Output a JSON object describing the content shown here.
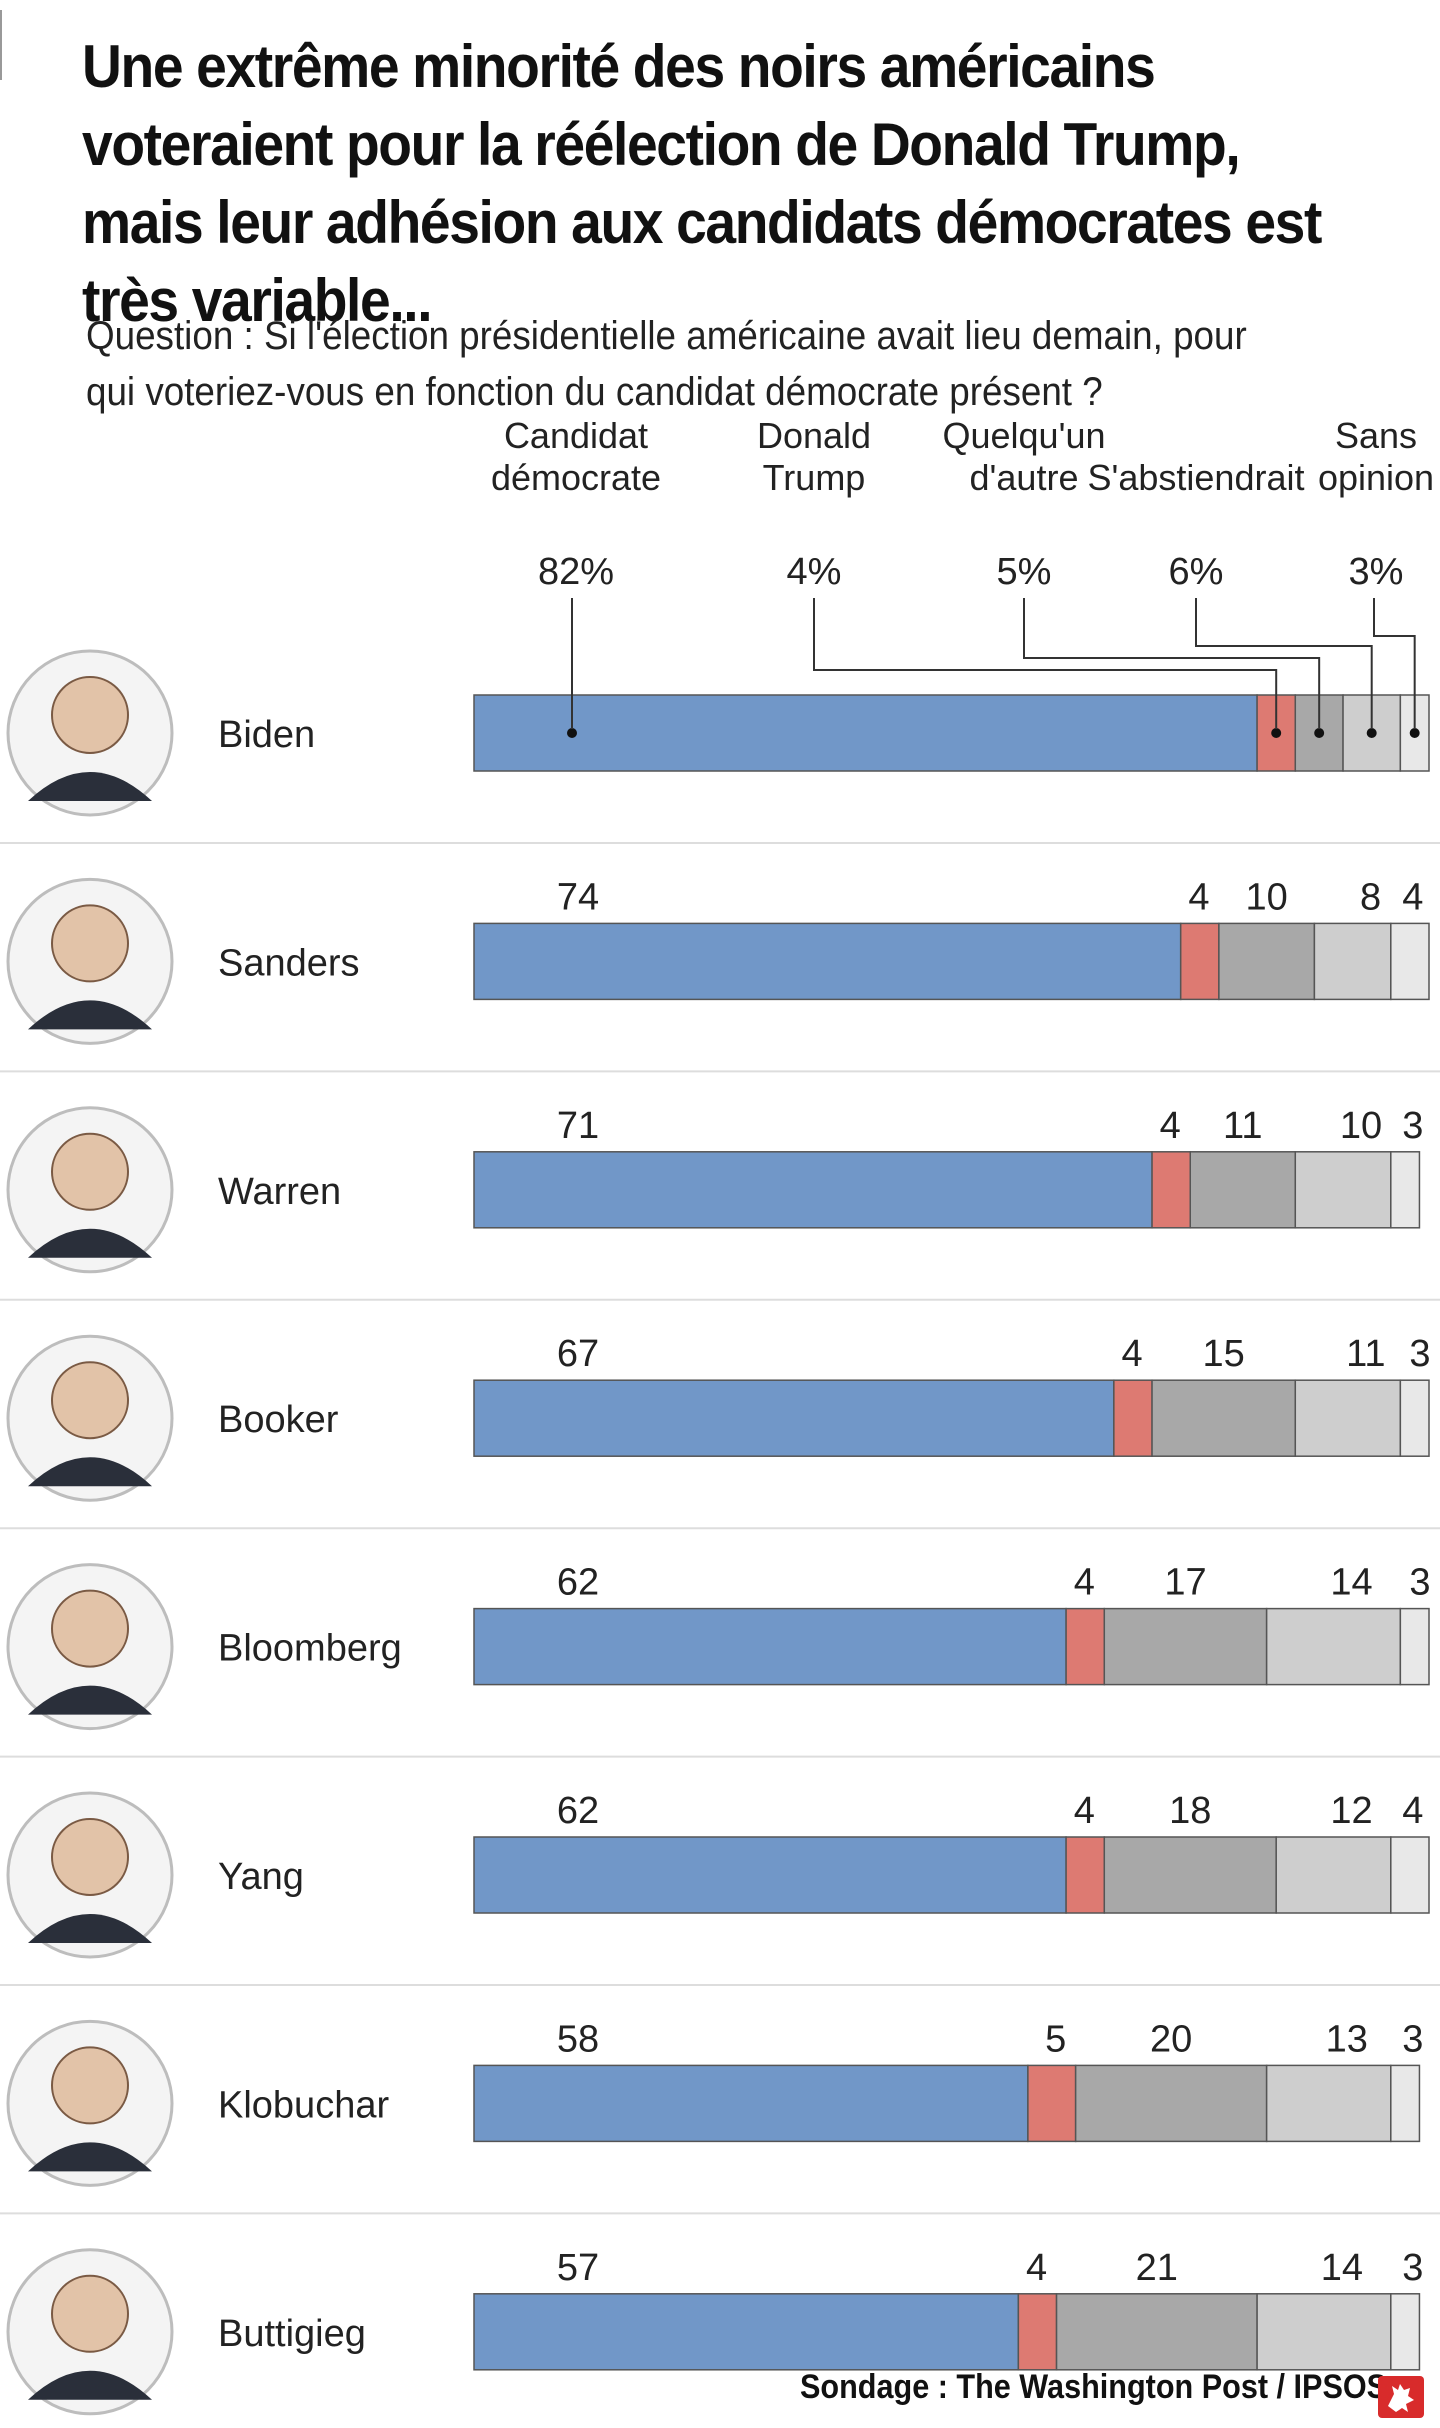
{
  "title": "Une extrême minorité des noirs américains voteraient pour la réélection de Donald Trump, mais leur adhésion aux candidats démocrates est très variable...",
  "subtitle": "Question : Si l'élection présidentielle américaine avait lieu demain, pour qui voteriez-vous en fonction du candidat démocrate présent ?",
  "source": "Sondage : The Washington Post / IPSOS",
  "logo_icon": "rooster-icon",
  "colors": {
    "democrat": "#7197c8",
    "trump": "#dd7a72",
    "other": "#a8a8a8",
    "abstain": "#cecece",
    "no_opinion": "#e8e8e8",
    "separator": "#dddddd"
  },
  "chart_data": {
    "type": "bar",
    "orientation": "horizontal",
    "stacked": true,
    "xlim": [
      0,
      100
    ],
    "unit": "%",
    "categories": [
      "Biden",
      "Sanders",
      "Warren",
      "Booker",
      "Bloomberg",
      "Yang",
      "Klobuchar",
      "Buttigieg"
    ],
    "series": [
      {
        "name": "Candidat démocrate",
        "legend_value": "82%",
        "values": [
          82,
          74,
          71,
          67,
          62,
          62,
          58,
          57
        ]
      },
      {
        "name": "Donald Trump",
        "legend_value": "4%",
        "values": [
          4,
          4,
          4,
          4,
          4,
          4,
          5,
          4
        ]
      },
      {
        "name": "Quelqu'un d'autre",
        "legend_value": "5%",
        "values": [
          5,
          10,
          11,
          15,
          17,
          18,
          20,
          21
        ]
      },
      {
        "name": "S'abstiendrait",
        "legend_value": "6%",
        "values": [
          6,
          8,
          10,
          11,
          14,
          12,
          13,
          14
        ]
      },
      {
        "name": "Sans opinion",
        "legend_value": "3%",
        "values": [
          3,
          4,
          3,
          3,
          3,
          4,
          3,
          3
        ]
      }
    ],
    "legend_placement": "top, above first row"
  }
}
